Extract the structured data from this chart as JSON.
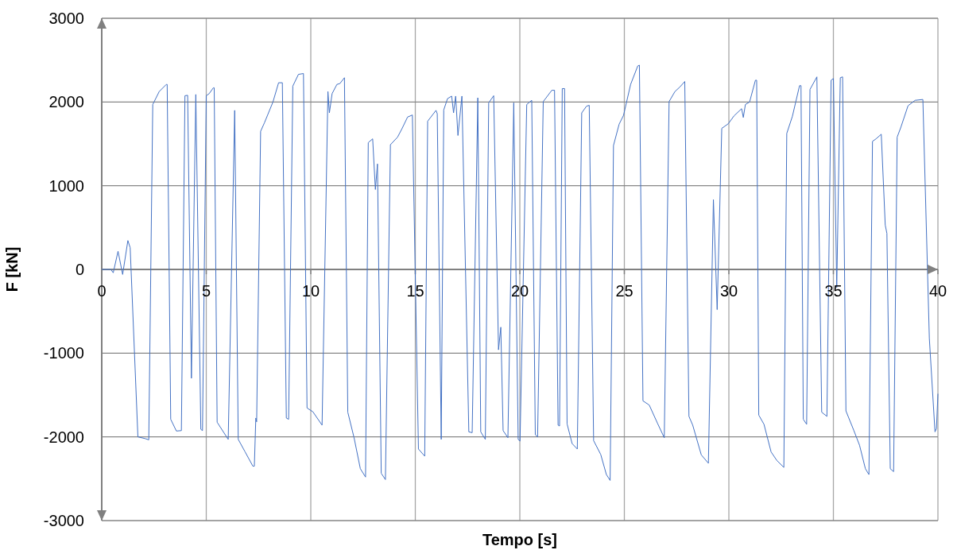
{
  "chart_data": {
    "type": "line",
    "xlabel": "Tempo [s]",
    "ylabel": "F [kN]",
    "x": [
      0,
      0.44,
      0.55,
      0.78,
      1.0,
      1.25,
      1.36,
      1.73,
      2.07,
      2.25,
      2.44,
      2.75,
      3.09,
      3.13,
      3.3,
      3.57,
      3.81,
      3.98,
      4.11,
      4.29,
      4.5,
      4.74,
      4.82,
      5.0,
      5.14,
      5.34,
      5.38,
      5.52,
      6.05,
      6.36,
      6.53,
      6.86,
      7.23,
      7.3,
      7.37,
      7.41,
      7.6,
      7.78,
      8.19,
      8.46,
      8.64,
      8.83,
      8.94,
      9.14,
      9.41,
      9.65,
      9.82,
      10.1,
      10.54,
      10.82,
      10.89,
      11.02,
      11.25,
      11.39,
      11.61,
      11.77,
      12.07,
      12.37,
      12.62,
      12.75,
      12.96,
      13.09,
      13.19,
      13.37,
      13.57,
      13.81,
      14.15,
      14.36,
      14.63,
      14.86,
      15.15,
      15.45,
      15.59,
      15.99,
      16.05,
      16.24,
      16.36,
      16.54,
      16.74,
      16.83,
      16.93,
      17.04,
      17.23,
      17.56,
      17.72,
      17.99,
      18.13,
      18.35,
      18.51,
      18.75,
      18.98,
      19.09,
      19.2,
      19.43,
      19.71,
      19.92,
      20.01,
      20.33,
      20.57,
      20.74,
      20.85,
      21.12,
      21.53,
      21.66,
      21.83,
      21.9,
      22.03,
      22.14,
      22.26,
      22.5,
      22.75,
      22.96,
      23.19,
      23.32,
      23.53,
      23.87,
      24.14,
      24.32,
      24.48,
      24.75,
      24.96,
      25.3,
      25.64,
      25.72,
      25.89,
      26.19,
      26.59,
      26.91,
      27.14,
      27.42,
      27.66,
      27.89,
      28.09,
      28.27,
      28.68,
      29.02,
      29.26,
      29.44,
      29.66,
      29.97,
      30.25,
      30.61,
      30.69,
      30.79,
      30.99,
      31.27,
      31.33,
      31.43,
      31.68,
      32.02,
      32.29,
      32.63,
      32.77,
      33.04,
      33.38,
      33.45,
      33.56,
      33.72,
      33.88,
      34.21,
      34.44,
      34.69,
      34.89,
      35.0,
      35.16,
      35.33,
      35.44,
      35.6,
      35.98,
      36.25,
      36.53,
      36.7,
      36.87,
      37.04,
      37.29,
      37.48,
      37.56,
      37.72,
      37.88,
      38.05,
      38.23,
      38.57,
      38.91,
      39.28,
      39.59,
      39.86,
      39.93,
      40
    ],
    "series": [
      {
        "color": "#4472c4",
        "values": [
          0,
          0,
          -40,
          217,
          -60,
          345,
          260,
          -2000,
          -2020,
          -2035,
          1970,
          2125,
          2210,
          2210,
          -1790,
          -1930,
          -1925,
          2075,
          2080,
          -1300,
          2090,
          -1910,
          -1925,
          2075,
          2100,
          2170,
          2170,
          -1825,
          -2030,
          1900,
          -2030,
          -2180,
          -2350,
          -2350,
          -1775,
          -1820,
          1650,
          1750,
          2000,
          2230,
          2230,
          -1775,
          -1790,
          2190,
          2330,
          2340,
          -1655,
          -1700,
          -1860,
          2125,
          1870,
          2100,
          2210,
          2220,
          2290,
          -1705,
          -2010,
          -2380,
          -2480,
          1515,
          1560,
          955,
          1260,
          -2435,
          -2510,
          1490,
          1580,
          1680,
          1820,
          1845,
          -2145,
          -2230,
          1770,
          1900,
          1860,
          -2030,
          1905,
          2040,
          2070,
          1870,
          2070,
          1600,
          2070,
          -1940,
          -1950,
          2050,
          -1940,
          -2030,
          1990,
          2075,
          -960,
          -690,
          -1925,
          -2010,
          1990,
          -2030,
          -2050,
          1970,
          2020,
          -1975,
          -2000,
          2005,
          2140,
          2140,
          -1860,
          -1870,
          2160,
          2160,
          -1845,
          -2080,
          -2145,
          1870,
          1950,
          1960,
          -2045,
          -2210,
          -2450,
          -2520,
          1480,
          1735,
          1840,
          2210,
          2430,
          2440,
          -1570,
          -1620,
          -1840,
          -2010,
          2005,
          2125,
          2180,
          2245,
          -1755,
          -1860,
          -2215,
          -2315,
          835,
          -480,
          1685,
          1740,
          1835,
          1920,
          1815,
          1970,
          2000,
          2260,
          2260,
          -1740,
          -1850,
          -2180,
          -2280,
          -2365,
          1625,
          1830,
          2195,
          2195,
          -1790,
          -1850,
          2150,
          2300,
          -1705,
          -1755,
          2260,
          2280,
          -215,
          2290,
          2300,
          -1690,
          -1925,
          -2100,
          -2380,
          -2450,
          1530,
          1560,
          1615,
          530,
          430,
          -2380,
          -2415,
          1580,
          1700,
          1955,
          2020,
          2030,
          -825,
          -1940,
          -1900,
          -1485
        ]
      }
    ],
    "xlim": [
      0,
      40
    ],
    "xticks": [
      0,
      5,
      10,
      15,
      20,
      25,
      30,
      35,
      40
    ],
    "ylim": [
      -3000,
      3000
    ],
    "yticks": [
      -3000,
      -2000,
      -1000,
      0,
      1000,
      2000,
      3000
    ],
    "grid": true,
    "marker": "none",
    "line_style": "solid"
  }
}
